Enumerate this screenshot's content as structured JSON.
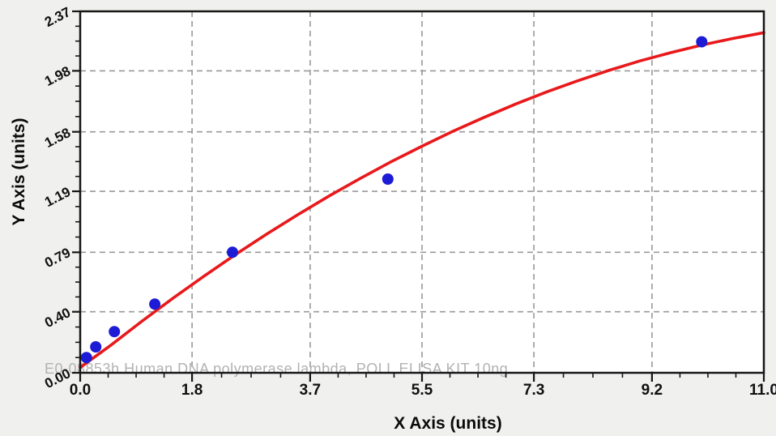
{
  "chart": {
    "y_title": "Y Axis (units)",
    "x_title": "X Axis (units)",
    "watermark": "E0-08853h Human DNA polymerase lambda, POLL ELISA KIT 10ng"
  },
  "chart_data": {
    "type": "scatter",
    "title": "",
    "xlabel": "X Axis (units)",
    "ylabel": "Y Axis (units)",
    "xlim": [
      0,
      11
    ],
    "ylim": [
      0,
      2.37
    ],
    "grid": "dashed",
    "legend": "none",
    "x_ticks": [
      {
        "value": 0.0,
        "label": "0.0"
      },
      {
        "value": 1.8,
        "label": "1.8"
      },
      {
        "value": 3.7,
        "label": "3.7"
      },
      {
        "value": 5.5,
        "label": "5.5"
      },
      {
        "value": 7.3,
        "label": "7.3"
      },
      {
        "value": 9.2,
        "label": "9.2"
      },
      {
        "value": 11.0,
        "label": "11.0"
      }
    ],
    "y_ticks": [
      {
        "value": 0.0,
        "label": "0.00"
      },
      {
        "value": 0.4,
        "label": "0.40"
      },
      {
        "value": 0.79,
        "label": "0.79"
      },
      {
        "value": 1.19,
        "label": "1.19"
      },
      {
        "value": 1.58,
        "label": "1.58"
      },
      {
        "value": 1.98,
        "label": "1.98"
      },
      {
        "value": 2.37,
        "label": "2.37"
      }
    ],
    "series": [
      {
        "name": "standard-points",
        "type": "scatter",
        "points": [
          [
            0.1,
            0.1
          ],
          [
            0.25,
            0.17
          ],
          [
            0.55,
            0.27
          ],
          [
            1.2,
            0.45
          ],
          [
            2.45,
            0.79
          ],
          [
            4.95,
            1.27
          ],
          [
            10.0,
            2.17
          ]
        ]
      },
      {
        "name": "fitted-curve",
        "type": "line",
        "points": [
          [
            0.0,
            0.035
          ],
          [
            0.5,
            0.183
          ],
          [
            1.0,
            0.34
          ],
          [
            1.5,
            0.491
          ],
          [
            2.0,
            0.636
          ],
          [
            2.5,
            0.776
          ],
          [
            3.0,
            0.909
          ],
          [
            3.5,
            1.036
          ],
          [
            4.0,
            1.158
          ],
          [
            4.5,
            1.273
          ],
          [
            5.0,
            1.383
          ],
          [
            5.5,
            1.486
          ],
          [
            6.0,
            1.584
          ],
          [
            6.5,
            1.675
          ],
          [
            7.0,
            1.761
          ],
          [
            7.5,
            1.841
          ],
          [
            8.0,
            1.914
          ],
          [
            8.5,
            1.982
          ],
          [
            9.0,
            2.044
          ],
          [
            9.5,
            2.099
          ],
          [
            10.0,
            2.149
          ],
          [
            10.5,
            2.192
          ],
          [
            11.0,
            2.23
          ]
        ]
      }
    ],
    "colors": {
      "point": "#1c1cd6",
      "curve": "#e8191b",
      "grid": "#999999",
      "axis": "#161616",
      "plot_bg": "#ffffff",
      "page_bg": "#f0f0ef",
      "watermark": "#b2b2b2",
      "tick_label": "#101010"
    }
  }
}
